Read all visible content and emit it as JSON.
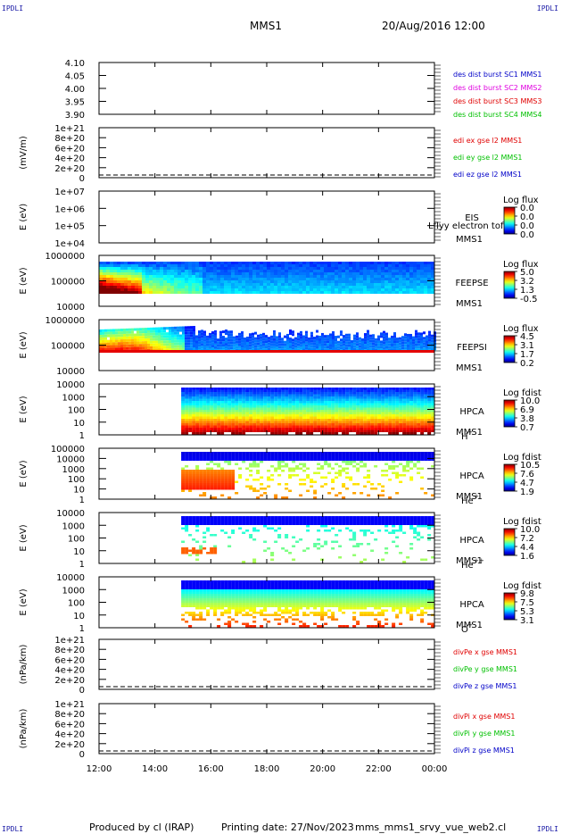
{
  "header": {
    "corner_tl": "IPDLI",
    "corner_tr": "IPDLI",
    "corner_bl": "IPDLI",
    "corner_br": "IPDLI",
    "spacecraft": "MMS1",
    "datetime": "20/Aug/2016 12:00"
  },
  "footer": {
    "producer": "Produced by cl (IRAP)",
    "printing": "Printing date: 27/Nov/2023",
    "script": "mms_mms1_srvy_vue_web2.cl"
  },
  "colors": {
    "blue": "#0000c8",
    "magenta": "#e000e0",
    "red": "#e00000",
    "green": "#00c000"
  },
  "chart_data": [
    {
      "type": "line",
      "id": "des",
      "yticks": [
        "4.10",
        "4.05",
        "4.00",
        "3.95",
        "3.90"
      ],
      "ylim": [
        3.9,
        4.1
      ],
      "ylabel": "",
      "legend": [
        {
          "text": "des dist burst SC1 MMS1",
          "color": "#0000c8"
        },
        {
          "text": "des dist burst SC2 MMS2",
          "color": "#e000e0"
        },
        {
          "text": "des dist burst SC3 MMS3",
          "color": "#e00000"
        },
        {
          "text": "des dist burst SC4 MMS4",
          "color": "#00c000"
        }
      ]
    },
    {
      "type": "line",
      "id": "edi",
      "yticks": [
        "1e+21",
        "8e+20",
        "6e+20",
        "4e+20",
        "2e+20",
        "0"
      ],
      "ylabel": "(mV/m)",
      "legend": [
        {
          "text": "edi ex gse l2 MMS1",
          "color": "#e00000"
        },
        {
          "text": "edi ey gse l2 MMS1",
          "color": "#00c000"
        },
        {
          "text": "edi ez gse l2 MMS1",
          "color": "#0000c8"
        }
      ]
    },
    {
      "type": "heatmap",
      "id": "eis",
      "yticks": [
        "1e+07",
        "1e+06",
        "1e+05",
        "1e+04"
      ],
      "ylabel": "E (eV)",
      "instrument": "EIS",
      "sub": "MMS1",
      "overlay": "Lflyy electron tof",
      "cbar_title": "Log flux",
      "cbar_ticks": [
        "0.0",
        "0.0",
        "0.0",
        "0.0"
      ],
      "fill": "none"
    },
    {
      "type": "heatmap",
      "id": "feepse",
      "yticks": [
        "1000000",
        "100000",
        "10000"
      ],
      "ylabel": "E (eV)",
      "instrument": "FEEPSE",
      "sub": "MMS1",
      "cbar_title": "Log flux",
      "cbar_ticks": [
        "5.0",
        "3.2",
        "1.3",
        "-0.5"
      ],
      "fill": "feepse"
    },
    {
      "type": "heatmap",
      "id": "feepsi",
      "yticks": [
        "1000000",
        "100000",
        "10000"
      ],
      "ylabel": "E (eV)",
      "instrument": "FEEPSI",
      "sub": "MMS1",
      "cbar_title": "Log flux",
      "cbar_ticks": [
        "4.5",
        "3.1",
        "1.7",
        "0.2"
      ],
      "fill": "feepsi"
    },
    {
      "type": "heatmap",
      "id": "hpca_h",
      "yticks": [
        "10000",
        "1000",
        "100",
        "10",
        "1"
      ],
      "ylabel": "E (eV)",
      "instrument": "HPCA",
      "sub": "MMS1",
      "species": "H",
      "charge": "+",
      "cbar_title": "Log fdist",
      "cbar_ticks": [
        "10.0",
        "6.9",
        "3.8",
        "0.7"
      ],
      "fill": "hpca_h"
    },
    {
      "type": "heatmap",
      "id": "hpca_he",
      "yticks": [
        "100000",
        "10000",
        "1000",
        "100",
        "10",
        "1"
      ],
      "ylabel": "E (eV)",
      "instrument": "HPCA",
      "sub": "MMS1",
      "species": "He",
      "charge": "+",
      "cbar_title": "Log fdist",
      "cbar_ticks": [
        "10.5",
        "7.6",
        "4.7",
        "1.9"
      ],
      "fill": "hpca_he"
    },
    {
      "type": "heatmap",
      "id": "hpca_hepp",
      "yticks": [
        "10000",
        "1000",
        "100",
        "10",
        "1"
      ],
      "ylabel": "E (eV)",
      "instrument": "HPCA",
      "sub": "MMS1",
      "species": "He",
      "charge": "++",
      "cbar_title": "Log fdist",
      "cbar_ticks": [
        "10.0",
        "7.2",
        "4.4",
        "1.6"
      ],
      "fill": "hpca_hepp"
    },
    {
      "type": "heatmap",
      "id": "hpca_o",
      "yticks": [
        "10000",
        "1000",
        "100",
        "10",
        "1"
      ],
      "ylabel": "E (eV)",
      "instrument": "HPCA",
      "sub": "MMS1",
      "species": "O",
      "charge": "+",
      "cbar_title": "Log fdist",
      "cbar_ticks": [
        "9.8",
        "7.5",
        "5.3",
        "3.1"
      ],
      "fill": "hpca_o"
    },
    {
      "type": "line",
      "id": "divpe",
      "yticks": [
        "1e+21",
        "8e+20",
        "6e+20",
        "4e+20",
        "2e+20",
        "0"
      ],
      "ylabel": "(nPa/km)",
      "legend": [
        {
          "text": "divPe x gse MMS1",
          "color": "#e00000"
        },
        {
          "text": "divPe y gse MMS1",
          "color": "#00c000"
        },
        {
          "text": "divPe z gse MMS1",
          "color": "#0000c8"
        }
      ]
    },
    {
      "type": "line",
      "id": "divpi",
      "yticks": [
        "1e+21",
        "8e+20",
        "6e+20",
        "4e+20",
        "2e+20",
        "0"
      ],
      "ylabel": "(nPa/km)",
      "legend": [
        {
          "text": "divPi x gse MMS1",
          "color": "#e00000"
        },
        {
          "text": "divPi y gse MMS1",
          "color": "#00c000"
        },
        {
          "text": "divPi z gse MMS1",
          "color": "#0000c8"
        }
      ]
    }
  ],
  "xaxis": {
    "ticks": [
      "12:00",
      "14:00",
      "16:00",
      "18:00",
      "20:00",
      "22:00",
      "00:00"
    ]
  }
}
